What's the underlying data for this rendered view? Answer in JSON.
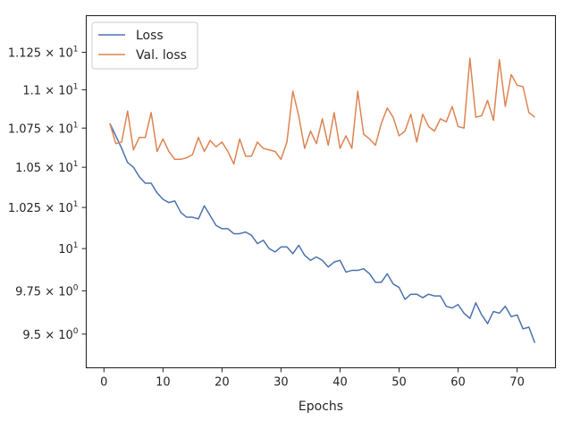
{
  "chart_data": {
    "type": "line",
    "title": "",
    "xlabel": "Epochs",
    "ylabel": "",
    "xlim": [
      -3,
      76.5
    ],
    "ylim": [
      9.31,
      11.5
    ],
    "yscale": "log",
    "grid": false,
    "legend_position": "top-left",
    "x_ticks": [
      0,
      10,
      20,
      30,
      40,
      50,
      60,
      70
    ],
    "x_tick_labels": [
      "0",
      "10",
      "20",
      "30",
      "40",
      "50",
      "60",
      "70"
    ],
    "y_ticks": [
      {
        "value": 9.5,
        "base": "9.5 × 10",
        "exp": "0"
      },
      {
        "value": 9.75,
        "base": "9.75 × 10",
        "exp": "0"
      },
      {
        "value": 10.0,
        "base": "10",
        "exp": "1"
      },
      {
        "value": 10.25,
        "base": "1.025 × 10",
        "exp": "1"
      },
      {
        "value": 10.5,
        "base": "1.05 × 10",
        "exp": "1"
      },
      {
        "value": 10.75,
        "base": "1.075 × 10",
        "exp": "1"
      },
      {
        "value": 11.0,
        "base": "1.1 × 10",
        "exp": "1"
      },
      {
        "value": 11.25,
        "base": "1.125 × 10",
        "exp": "1"
      }
    ],
    "x": [
      1,
      2,
      3,
      4,
      5,
      6,
      7,
      8,
      9,
      10,
      11,
      12,
      13,
      14,
      15,
      16,
      17,
      18,
      19,
      20,
      21,
      22,
      23,
      24,
      25,
      26,
      27,
      28,
      29,
      30,
      31,
      32,
      33,
      34,
      35,
      36,
      37,
      38,
      39,
      40,
      41,
      42,
      43,
      44,
      45,
      46,
      47,
      48,
      49,
      50,
      51,
      52,
      53,
      54,
      55,
      56,
      57,
      58,
      59,
      60,
      61,
      62,
      63,
      64,
      65,
      66,
      67,
      68,
      69,
      70,
      71,
      72,
      73
    ],
    "series": [
      {
        "name": "Loss",
        "color": "#4c72b0",
        "values": [
          10.78,
          10.7,
          10.62,
          10.53,
          10.5,
          10.44,
          10.4,
          10.4,
          10.34,
          10.3,
          10.28,
          10.29,
          10.22,
          10.19,
          10.19,
          10.18,
          10.26,
          10.2,
          10.14,
          10.12,
          10.12,
          10.09,
          10.09,
          10.1,
          10.08,
          10.03,
          10.05,
          10.0,
          9.98,
          10.01,
          10.01,
          9.97,
          10.02,
          9.96,
          9.93,
          9.95,
          9.93,
          9.89,
          9.92,
          9.93,
          9.86,
          9.87,
          9.87,
          9.88,
          9.85,
          9.8,
          9.8,
          9.85,
          9.79,
          9.77,
          9.7,
          9.73,
          9.73,
          9.71,
          9.73,
          9.72,
          9.72,
          9.66,
          9.65,
          9.67,
          9.62,
          9.59,
          9.68,
          9.61,
          9.56,
          9.63,
          9.62,
          9.66,
          9.6,
          9.61,
          9.53,
          9.54,
          9.45
        ]
      },
      {
        "name": "Val. loss",
        "color": "#dd8452",
        "values": [
          10.78,
          10.65,
          10.66,
          10.86,
          10.61,
          10.69,
          10.69,
          10.85,
          10.6,
          10.68,
          10.6,
          10.55,
          10.55,
          10.56,
          10.58,
          10.69,
          10.6,
          10.67,
          10.63,
          10.66,
          10.6,
          10.52,
          10.68,
          10.57,
          10.57,
          10.66,
          10.62,
          10.61,
          10.6,
          10.55,
          10.66,
          10.99,
          10.83,
          10.62,
          10.73,
          10.65,
          10.81,
          10.64,
          10.85,
          10.62,
          10.7,
          10.62,
          10.99,
          10.71,
          10.68,
          10.64,
          10.78,
          10.88,
          10.82,
          10.7,
          10.73,
          10.84,
          10.66,
          10.84,
          10.76,
          10.73,
          10.81,
          10.79,
          10.89,
          10.76,
          10.75,
          11.21,
          10.82,
          10.83,
          10.93,
          10.8,
          11.2,
          10.89,
          11.1,
          11.03,
          11.02,
          10.85,
          10.82
        ]
      }
    ]
  }
}
